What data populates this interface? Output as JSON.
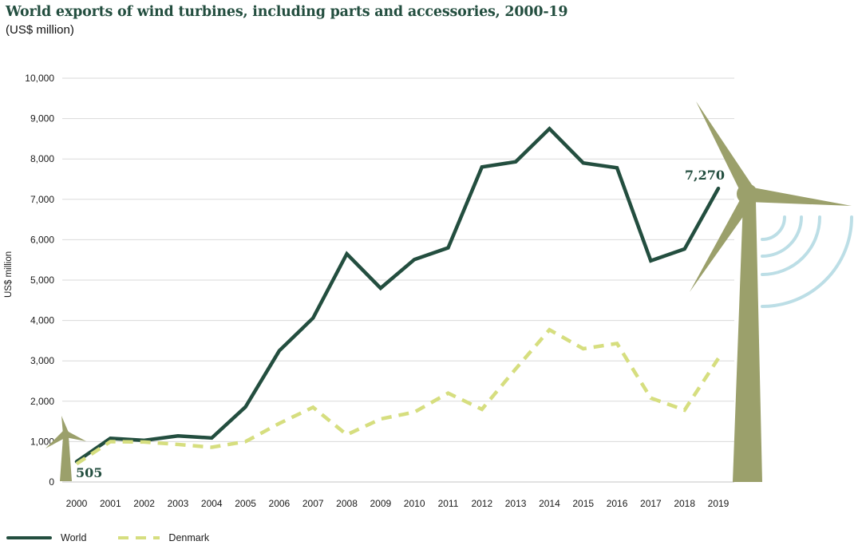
{
  "header": {
    "title": "World exports of wind turbines, including parts and accessories, 2000-19",
    "subtitle": "(US$ million)"
  },
  "chart_data": {
    "type": "line",
    "title": "World exports of wind turbines, including parts and accessories, 2000-19",
    "subtitle": "(US$ million)",
    "xlabel": "",
    "ylabel": "US$ million",
    "ylim": [
      0,
      10000
    ],
    "ytick_step": 1000,
    "grid": "horizontal",
    "legend_position": "bottom-left",
    "categories": [
      "2000",
      "2001",
      "2002",
      "2003",
      "2004",
      "2005",
      "2006",
      "2007",
      "2008",
      "2009",
      "2010",
      "2011",
      "2012",
      "2013",
      "2014",
      "2015",
      "2016",
      "2017",
      "2018",
      "2019"
    ],
    "series": [
      {
        "name": "World",
        "style": "solid",
        "color": "#234E3F",
        "values": [
          505,
          1080,
          1030,
          1140,
          1090,
          1860,
          3250,
          4060,
          5650,
          4800,
          5510,
          5800,
          7800,
          7930,
          8750,
          7900,
          7780,
          5480,
          5770,
          7270
        ]
      },
      {
        "name": "Denmark",
        "style": "dashed",
        "color": "#D6DE7F",
        "values": [
          450,
          1000,
          990,
          930,
          860,
          1000,
          1450,
          1850,
          1170,
          1560,
          1730,
          2200,
          1800,
          2800,
          3770,
          3300,
          3430,
          2080,
          1780,
          3060
        ]
      }
    ],
    "annotations": [
      {
        "label": "505",
        "series": "World",
        "year": "2000",
        "position": "below-start"
      },
      {
        "label": "7,270",
        "series": "World",
        "year": "2019",
        "position": "above-end"
      }
    ]
  },
  "decorations": {
    "wind_turbine_large": "wind-turbine-illustration",
    "wind_turbine_small": "wind-turbine-illustration",
    "wind_arcs": "wind-gust-arcs"
  },
  "colors": {
    "accent_dark_green": "#234E3F",
    "denmark_line": "#D6DE7F",
    "turbine_olive": "#9BA06B",
    "wind_arc_blue": "#BCDEE6",
    "gridline": "#DADADA",
    "axis_line": "#C6C6C6",
    "text": "#1A1A1A"
  }
}
